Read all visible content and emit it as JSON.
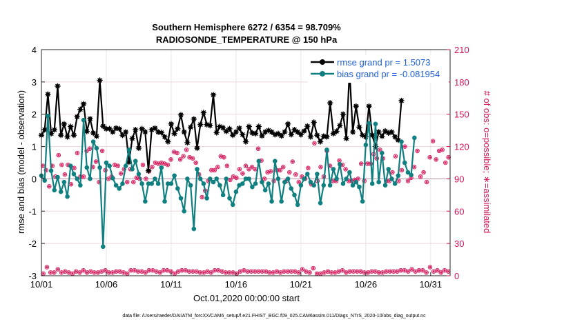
{
  "chart_data": {
    "type": "line",
    "title": "Southern Hemisphere 6272 / 6354 = 98.709%",
    "subtitle": "RADIOSONDE_TEMPERATURE @ 150 hPa",
    "xlabel": "Oct.01,2020 00:00:00 start",
    "ylabel": "rmse and bias (model - observation)",
    "ylabel_right": "# of obs: o=possible; ∗=assimilated",
    "footnote": "data file: /Users/raeder/DAI/ATM_forcXX/CAM6_setup/f.e21.FHIST_BGC.f09_025.CAM6assim.011/Diags_NTrS_2020-10/obs_diag_output.nc",
    "xlim": [
      1,
      32.5
    ],
    "ylim": [
      -3,
      4
    ],
    "ylim_right": [
      0,
      210
    ],
    "grid": true,
    "legend_position": "top-right",
    "x_ticks": [
      1,
      6,
      11,
      16,
      21,
      26,
      31
    ],
    "x_tick_labels": [
      "10/01",
      "10/06",
      "10/11",
      "10/16",
      "10/21",
      "10/26",
      "10/31"
    ],
    "y_ticks": [
      -3,
      -2,
      -1,
      0,
      1,
      2,
      3,
      4
    ],
    "y_ticks_right": [
      0,
      30,
      60,
      90,
      120,
      150,
      180,
      210
    ],
    "x_start": 1,
    "x_step": 0.25,
    "series": [
      {
        "name": "rmse grand pr = 1.5073",
        "color": "#000000",
        "axis": "left",
        "values": [
          1.35,
          1.52,
          2.62,
          1.4,
          1.52,
          2.87,
          1.35,
          1.7,
          1.3,
          1.62,
          1.35,
          1.92,
          2.15,
          2.32,
          1.47,
          1.86,
          1.42,
          1.32,
          3.05,
          1.63,
          1.55,
          1.55,
          1.45,
          1.57,
          1.55,
          1.35,
          1.45,
          0.52,
          1.25,
          1.52,
          0.95,
          1.55,
          1.45,
          0.25,
          1.52,
          1.57,
          1.45,
          1.43,
          1.3,
          1.15,
          1.7,
          1.4,
          1.55,
          1.98,
          1.45,
          1.12,
          1.6,
          1.85,
          0.95,
          1.68,
          2.05,
          1.68,
          1.65,
          2.6,
          1.43,
          1.62,
          1.58,
          1.47,
          1.55,
          1.35,
          1.45,
          1.57,
          1.37,
          1.15,
          1.62,
          1.42,
          1.4,
          1.62,
          1.33,
          1.45,
          1.5,
          1.45,
          1.37,
          1.4,
          1.33,
          1.45,
          1.7,
          1.37,
          1.52,
          1.45,
          1.37,
          1.48,
          1.63,
          1.3,
          1.75,
          1.35,
          1.15,
          1.32,
          1.3,
          2.35,
          1.4,
          1.47,
          1.65,
          2.0,
          1.25,
          3.35,
          1.45,
          2.25,
          1.6,
          1.35,
          1.3,
          2.25,
          1.35,
          1.0,
          1.45,
          1.32,
          1.48,
          1.42,
          1.45,
          1.3,
          1.2,
          2.42
        ]
      },
      {
        "name": "bias grand pr = -0.081954",
        "color": "#0f7f7f",
        "axis": "left",
        "values": [
          0.1,
          -0.05,
          1.95,
          0.25,
          -0.35,
          0.05,
          -0.4,
          -0.1,
          -0.55,
          0.4,
          0.15,
          0.0,
          -0.2,
          1.82,
          0.35,
          0.0,
          1.15,
          0.95,
          0.35,
          -2.1,
          0.5,
          0.4,
          0.02,
          -0.2,
          -0.3,
          -0.15,
          0.4,
          0.9,
          0.3,
          0.55,
          0.15,
          -0.15,
          -0.7,
          -0.15,
          -0.15,
          0.0,
          -0.15,
          0.35,
          -0.7,
          -0.15,
          -0.15,
          0.1,
          -0.3,
          -0.6,
          -1.0,
          0.0,
          -0.2,
          -1.55,
          0.3,
          0.0,
          -0.15,
          -0.6,
          0.0,
          -0.1,
          0.0,
          -0.2,
          -0.5,
          0.0,
          -0.6,
          -0.8,
          -0.4,
          -0.2,
          -0.15,
          0.0,
          0.0,
          -0.25,
          -0.15,
          0.55,
          -0.1,
          -0.35,
          -0.15,
          -0.7,
          0.55,
          0.0,
          -0.7,
          -0.1,
          0.0,
          -0.3,
          -0.5,
          -0.8,
          -0.2,
          0.0,
          0.15,
          -0.1,
          -0.2,
          0.15,
          -0.75,
          -0.2,
          0.9,
          -0.2,
          0.3,
          0.0,
          0.45,
          -0.15,
          0.0,
          0.2,
          -0.2,
          -0.1,
          -0.25,
          -0.7,
          1.05,
          1.72,
          -0.15,
          1.7,
          -0.1,
          0.8,
          -0.2,
          0.3,
          0.0,
          -0.15,
          0.1,
          1.15,
          0.5,
          0.2,
          0.12,
          1.27
        ]
      }
    ],
    "obs_series": {
      "color": "#d4145a",
      "axis": "right",
      "possible_label": "possible",
      "assimilated_label": "assimilated",
      "high_values": [
        102,
        98,
        83,
        102,
        92,
        112,
        103,
        94,
        103,
        85,
        100,
        114,
        92,
        92,
        116,
        118,
        101,
        106,
        87,
        116,
        98,
        90,
        92,
        103,
        102,
        95,
        99,
        87,
        99,
        87,
        91,
        90,
        103,
        90,
        97,
        101,
        105,
        104,
        105,
        104,
        103,
        108,
        115,
        114,
        108,
        111,
        117,
        110,
        109,
        105,
        94,
        73,
        79,
        88,
        98,
        98,
        101,
        111,
        110,
        102,
        89,
        92,
        91,
        99,
        95,
        102,
        99,
        101,
        99,
        118,
        107,
        90,
        96,
        97,
        88,
        98,
        98,
        101,
        88,
        96,
        106,
        94,
        87,
        92,
        90,
        100,
        85,
        123,
        88,
        101,
        92,
        116,
        102,
        88,
        88,
        107,
        103,
        99,
        88,
        88,
        89,
        90,
        104,
        88,
        104,
        104,
        113,
        109,
        117,
        109,
        88,
        88,
        96,
        111,
        88,
        98,
        120,
        88,
        91,
        101,
        116,
        92,
        96,
        87,
        110,
        125,
        108,
        116,
        117,
        105,
        110
      ],
      "low_values": [
        2,
        8,
        3,
        3,
        6,
        3,
        4,
        3,
        2,
        4,
        3,
        5,
        3,
        4,
        3,
        3,
        4,
        5,
        3,
        3,
        4,
        4,
        3,
        2,
        5,
        5,
        4,
        4,
        3,
        5,
        5,
        4,
        3,
        5,
        5,
        4,
        2,
        4,
        5,
        5,
        4,
        4,
        4,
        3,
        3,
        4,
        3,
        5,
        5,
        4,
        3,
        3,
        3,
        2,
        4,
        5,
        4,
        4,
        4,
        4,
        4,
        4,
        3,
        3,
        4,
        3,
        4,
        4,
        4,
        4,
        3,
        6,
        4,
        3,
        7,
        2,
        2,
        3,
        4,
        3,
        3,
        4,
        5,
        3,
        4,
        4,
        4,
        4,
        3,
        3,
        4,
        4,
        3,
        3,
        4,
        4,
        4,
        4,
        5,
        5,
        4,
        6,
        4,
        5,
        5,
        3,
        8,
        4,
        5,
        3,
        5,
        4
      ]
    }
  }
}
